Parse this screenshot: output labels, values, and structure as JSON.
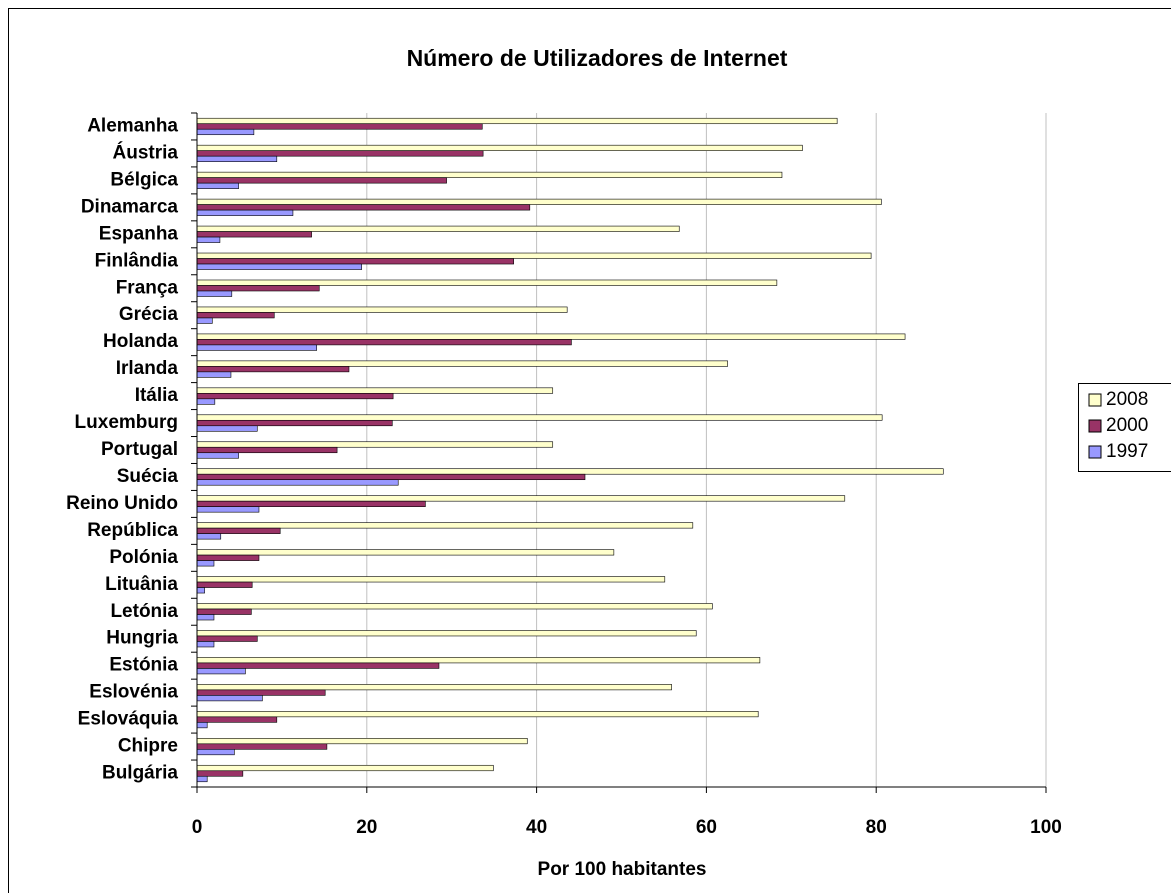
{
  "chart_data": {
    "type": "bar",
    "orientation": "horizontal",
    "title": "Número de Utilizadores de Internet",
    "x_label": "Por 100 habitantes",
    "categories": [
      "Alemanha",
      "Áustria",
      "Bélgica",
      "Dinamarca",
      "Espanha",
      "Finlândia",
      "França",
      "Grécia",
      "Holanda",
      "Irlanda",
      "Itália",
      "Luxemburg",
      "Portugal",
      "Suécia",
      "Reino Unido",
      "República",
      "Polónia",
      "Lituânia",
      "Letónia",
      "Hungria",
      "Estónia",
      "Eslovénia",
      "Eslováquia",
      "Chipre",
      "Bulgária"
    ],
    "series": [
      {
        "name": "2008",
        "color": "#ffffcc",
        "values": [
          75.4,
          71.3,
          68.9,
          80.6,
          56.8,
          79.4,
          68.3,
          43.6,
          83.4,
          62.5,
          41.9,
          80.7,
          41.9,
          87.9,
          76.3,
          58.4,
          49.1,
          55.1,
          60.7,
          58.8,
          66.3,
          55.9,
          66.1,
          38.9,
          34.9
        ]
      },
      {
        "name": "2000",
        "color": "#993366",
        "values": [
          33.6,
          33.7,
          29.4,
          39.2,
          13.5,
          37.3,
          14.4,
          9.1,
          44.1,
          17.9,
          23.1,
          23.0,
          16.5,
          45.7,
          26.9,
          9.8,
          7.3,
          6.5,
          6.4,
          7.1,
          28.5,
          15.1,
          9.4,
          15.3,
          5.4
        ]
      },
      {
        "name": "1997",
        "color": "#9999ff",
        "values": [
          6.7,
          9.4,
          4.9,
          11.3,
          2.7,
          19.4,
          4.1,
          1.8,
          14.1,
          4.0,
          2.1,
          7.1,
          4.9,
          23.7,
          7.3,
          2.8,
          2.0,
          0.9,
          2.0,
          2.0,
          5.7,
          7.7,
          1.2,
          4.4,
          1.2
        ]
      }
    ],
    "xlim": [
      0,
      100
    ],
    "xticks": [
      0,
      20,
      40,
      60,
      80,
      100
    ],
    "grid": true,
    "legend": "right"
  }
}
